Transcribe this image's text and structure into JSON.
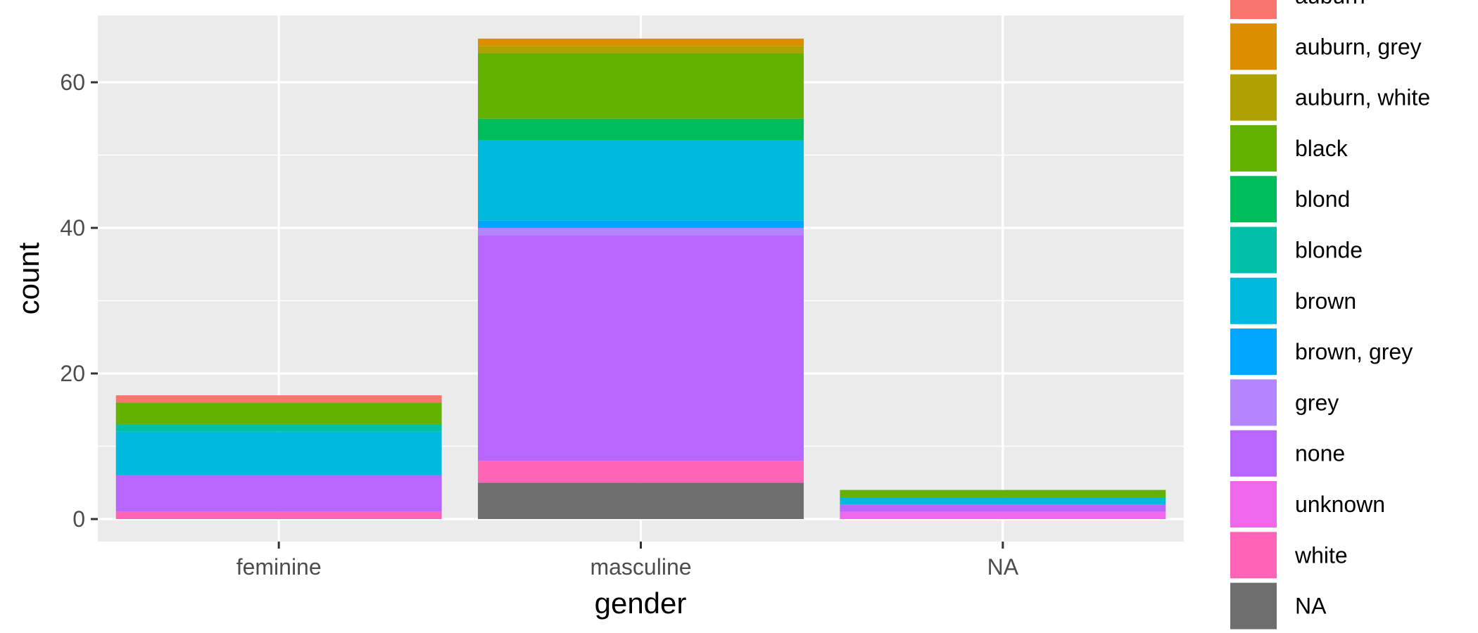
{
  "chart_data": {
    "type": "bar",
    "stacked": true,
    "xlabel": "gender",
    "ylabel": "count",
    "categories": [
      "feminine",
      "masculine",
      "NA"
    ],
    "ylim": [
      0,
      70
    ],
    "yticks": [
      0,
      20,
      40,
      60
    ],
    "grid": true,
    "legend_position": "right",
    "series": [
      {
        "name": "auburn",
        "color": "#F8766D",
        "values": [
          1,
          0,
          0
        ]
      },
      {
        "name": "auburn, grey",
        "color": "#DB8E00",
        "values": [
          0,
          1,
          0
        ]
      },
      {
        "name": "auburn, white",
        "color": "#AEA200",
        "values": [
          0,
          1,
          0
        ]
      },
      {
        "name": "black",
        "color": "#64B200",
        "values": [
          3,
          9,
          1
        ]
      },
      {
        "name": "blond",
        "color": "#00BD5C",
        "values": [
          0,
          3,
          0
        ]
      },
      {
        "name": "blonde",
        "color": "#00C1A7",
        "values": [
          1,
          0,
          0
        ]
      },
      {
        "name": "brown",
        "color": "#00BADE",
        "values": [
          6,
          11,
          1
        ]
      },
      {
        "name": "brown, grey",
        "color": "#00A6FF",
        "values": [
          0,
          1,
          0
        ]
      },
      {
        "name": "grey",
        "color": "#B385FF",
        "values": [
          0,
          1,
          0
        ]
      },
      {
        "name": "none",
        "color": "#B767FF",
        "values": [
          5,
          31,
          1
        ]
      },
      {
        "name": "unknown",
        "color": "#EF67EB",
        "values": [
          0,
          0,
          1
        ]
      },
      {
        "name": "white",
        "color": "#FF63B6",
        "values": [
          1,
          3,
          0
        ]
      },
      {
        "name": "NA",
        "color": "#6E6E6E",
        "values": [
          0,
          5,
          0
        ]
      }
    ]
  }
}
